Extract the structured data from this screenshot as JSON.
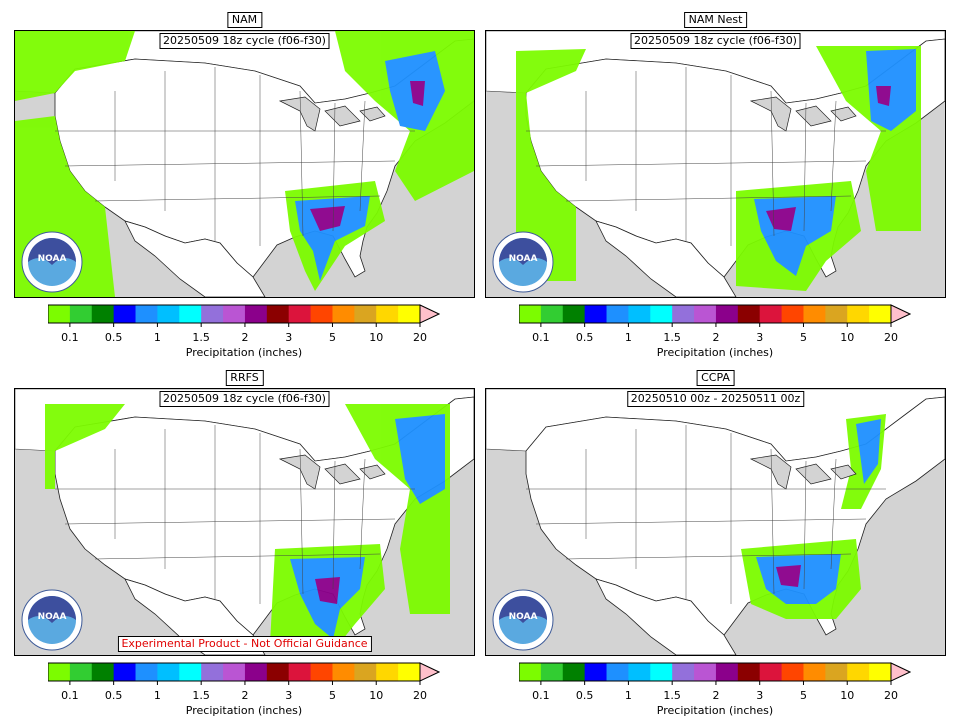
{
  "panels": [
    {
      "title": "NAM",
      "cycle": "20250509 18z cycle (f06-f30)",
      "notice": ""
    },
    {
      "title": "NAM Nest",
      "cycle": "20250509 18z cycle (f06-f30)",
      "notice": ""
    },
    {
      "title": "RRFS",
      "cycle": "20250509 18z cycle (f06-f30)",
      "notice": "Experimental Product - Not Official Guidance"
    },
    {
      "title": "CCPA",
      "cycle": "20250510 00z - 20250511 00z",
      "notice": ""
    }
  ],
  "logo_text": "NOAA",
  "colorbar": {
    "label": "Precipitation (inches)",
    "ticks": [
      "0.1",
      "0.5",
      "1",
      "1.5",
      "2",
      "3",
      "5",
      "10",
      "20"
    ],
    "colors": [
      "#7cfc00",
      "#32cd32",
      "#008000",
      "#0000ff",
      "#1e90ff",
      "#00bfff",
      "#00ffff",
      "#9370db",
      "#ba55d3",
      "#8b008b",
      "#8b0000",
      "#dc143c",
      "#ff4500",
      "#ff8c00",
      "#daa520",
      "#ffd700",
      "#ffff00",
      "#ffc0cb"
    ]
  }
}
